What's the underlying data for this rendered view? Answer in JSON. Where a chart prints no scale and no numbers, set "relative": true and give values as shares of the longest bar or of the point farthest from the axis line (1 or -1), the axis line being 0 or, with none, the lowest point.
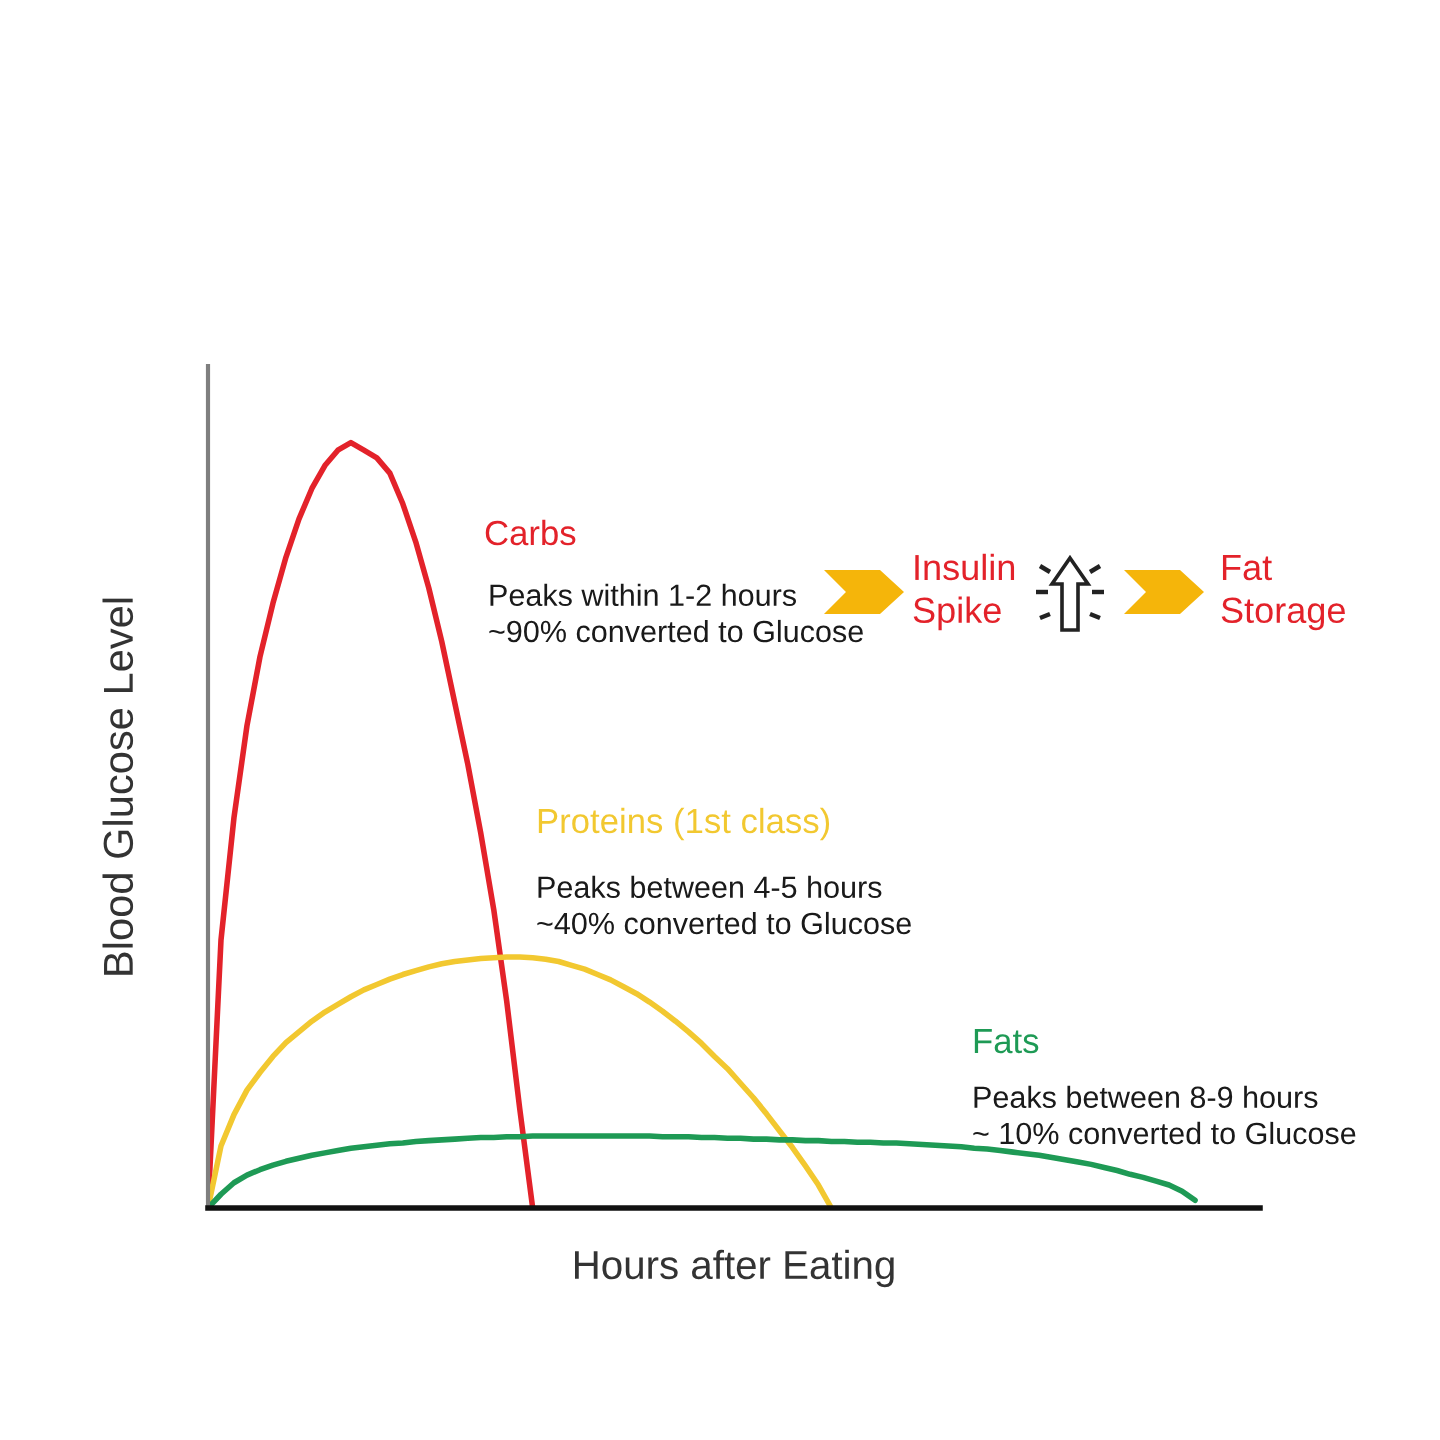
{
  "chart_data": {
    "type": "line",
    "relative": true,
    "line_style": "solid",
    "xlabel": "Hours after Eating",
    "ylabel": "Blood Glucose Level",
    "categories": [
      null,
      null,
      null,
      null,
      null,
      null,
      null,
      null,
      null,
      null,
      null,
      null,
      null,
      null,
      null,
      null,
      null,
      null,
      null,
      null,
      null,
      null,
      null,
      null,
      null,
      null,
      null,
      null,
      null,
      null,
      null,
      null,
      null,
      null,
      null,
      null,
      null,
      null,
      null,
      null,
      null,
      null,
      null,
      null,
      null,
      null,
      null,
      null,
      null,
      null,
      null,
      null,
      null,
      null,
      null,
      null,
      null,
      null,
      null,
      null,
      null,
      null,
      null,
      null,
      null,
      null,
      null,
      null,
      null,
      null,
      null,
      null,
      null,
      null,
      null,
      null,
      null,
      null,
      null,
      null,
      null,
      null
    ],
    "series": [
      {
        "name": "Carbs",
        "color": "#e3222a",
        "values": [
          0,
          0.35,
          0.51,
          0.63,
          0.72,
          0.79,
          0.85,
          0.9,
          0.94,
          0.97,
          0.99,
          1,
          0.99,
          0.98,
          0.96,
          0.92,
          0.87,
          0.81,
          0.74,
          0.66,
          0.58,
          0.49,
          0.39,
          0.27,
          0.13,
          0,
          null,
          null,
          null,
          null,
          null,
          null,
          null,
          null,
          null,
          null,
          null,
          null,
          null,
          null,
          null,
          null,
          null,
          null,
          null,
          null,
          null,
          null,
          null,
          null,
          null,
          null,
          null,
          null,
          null,
          null,
          null,
          null,
          null,
          null,
          null,
          null,
          null,
          null,
          null,
          null,
          null,
          null,
          null,
          null,
          null,
          null,
          null,
          null,
          null,
          null,
          null,
          null,
          null,
          null,
          null,
          null
        ]
      },
      {
        "name": "Proteins (1st class)",
        "color": "#f2c830",
        "values": [
          0,
          0.081,
          0.122,
          0.154,
          0.177,
          0.198,
          0.216,
          0.23,
          0.244,
          0.256,
          0.266,
          0.276,
          0.285,
          0.292,
          0.299,
          0.305,
          0.31,
          0.315,
          0.319,
          0.322,
          0.324,
          0.326,
          0.327,
          0.328,
          0.328,
          0.327,
          0.325,
          0.322,
          0.317,
          0.312,
          0.305,
          0.298,
          0.289,
          0.28,
          0.269,
          0.257,
          0.244,
          0.23,
          0.215,
          0.198,
          0.182,
          0.163,
          0.144,
          0.123,
          0.101,
          0.079,
          0.055,
          0.03,
          0,
          null,
          null,
          null,
          null,
          null,
          null,
          null,
          null,
          null,
          null,
          null,
          null,
          null,
          null,
          null,
          null,
          null,
          null,
          null,
          null,
          null,
          null,
          null,
          null,
          null,
          null,
          null,
          null,
          null,
          null,
          null,
          null,
          null
        ]
      },
      {
        "name": "Fats",
        "color": "#1e9a55",
        "values": [
          0,
          0.018,
          0.033,
          0.043,
          0.05,
          0.056,
          0.061,
          0.065,
          0.069,
          0.072,
          0.075,
          0.078,
          0.08,
          0.082,
          0.084,
          0.085,
          0.087,
          0.088,
          0.089,
          0.09,
          0.091,
          0.092,
          0.092,
          0.093,
          0.093,
          0.094,
          0.094,
          0.094,
          0.094,
          0.094,
          0.094,
          0.094,
          0.094,
          0.094,
          0.094,
          0.093,
          0.093,
          0.093,
          0.092,
          0.092,
          0.091,
          0.091,
          0.09,
          0.09,
          0.089,
          0.089,
          0.088,
          0.088,
          0.087,
          0.087,
          0.086,
          0.086,
          0.085,
          0.085,
          0.084,
          0.083,
          0.082,
          0.081,
          0.08,
          0.078,
          0.077,
          0.075,
          0.073,
          0.071,
          0.069,
          0.066,
          0.063,
          0.06,
          0.057,
          0.053,
          0.049,
          0.044,
          0.04,
          0.035,
          0.03,
          0.022,
          0.01,
          null,
          null,
          null,
          null,
          null
        ]
      }
    ],
    "annotations": [
      "Peaks within 1-2 hours\n~90% converted to Glucose",
      "Peaks between 4-5 hours\n~40% converted to Glucose",
      "Peaks between 8-9 hours\n~ 10% converted to Glucose",
      "Insulin\nSpike",
      "Fat\nStorage"
    ]
  }
}
